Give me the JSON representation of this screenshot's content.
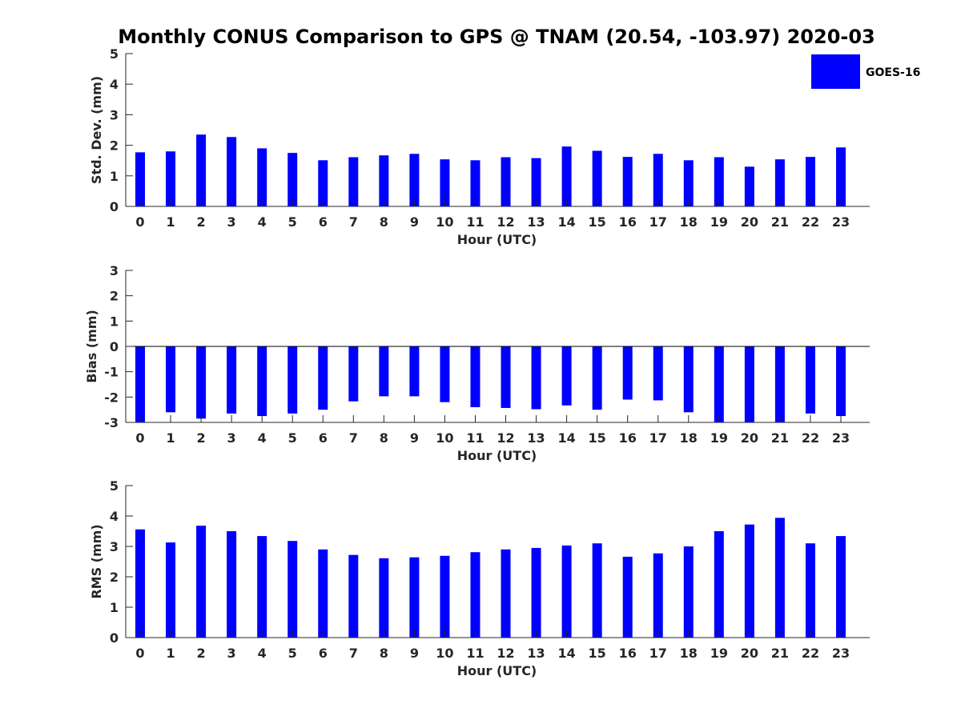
{
  "title": "Monthly CONUS Comparison to GPS @ TNAM (20.54, -103.97) 2020-03",
  "legend": {
    "label": "GOES-16",
    "color": "#0000ff",
    "placement": "top-right"
  },
  "colors": {
    "bar": "#0000ff",
    "axis": "#262626",
    "title": "#000000"
  },
  "chart_data": [
    {
      "type": "bar",
      "title": "",
      "xlabel": "Hour (UTC)",
      "ylabel": "Std. Dev. (mm)",
      "categories": [
        "0",
        "1",
        "2",
        "3",
        "4",
        "5",
        "6",
        "7",
        "8",
        "9",
        "10",
        "11",
        "12",
        "13",
        "14",
        "15",
        "16",
        "17",
        "18",
        "19",
        "20",
        "21",
        "22",
        "23"
      ],
      "series": [
        {
          "name": "GOES-16",
          "values": [
            1.77,
            1.8,
            2.35,
            2.27,
            1.9,
            1.75,
            1.51,
            1.61,
            1.67,
            1.72,
            1.54,
            1.51,
            1.61,
            1.58,
            1.96,
            1.82,
            1.62,
            1.72,
            1.51,
            1.61,
            1.3,
            1.54,
            1.62,
            1.93
          ]
        }
      ],
      "ylim": [
        0,
        5
      ],
      "yticks": [
        "0",
        "1",
        "2",
        "3",
        "4",
        "5"
      ],
      "grid": false
    },
    {
      "type": "bar",
      "title": "",
      "xlabel": "Hour (UTC)",
      "ylabel": "Bias (mm)",
      "categories": [
        "0",
        "1",
        "2",
        "3",
        "4",
        "5",
        "6",
        "7",
        "8",
        "9",
        "10",
        "11",
        "12",
        "13",
        "14",
        "15",
        "16",
        "17",
        "18",
        "19",
        "20",
        "21",
        "22",
        "23"
      ],
      "series": [
        {
          "name": "GOES-16",
          "values": [
            -3.0,
            -2.6,
            -2.85,
            -2.65,
            -2.75,
            -2.65,
            -2.5,
            -2.17,
            -1.97,
            -1.97,
            -2.2,
            -2.4,
            -2.43,
            -2.48,
            -2.33,
            -2.5,
            -2.1,
            -2.13,
            -2.6,
            -3.0,
            -3.0,
            -3.0,
            -2.65,
            -2.75
          ]
        }
      ],
      "ylim": [
        -3,
        3
      ],
      "yticks": [
        "-3",
        "-2",
        "-1",
        "0",
        "1",
        "2",
        "3"
      ],
      "zero_line": true,
      "grid": false
    },
    {
      "type": "bar",
      "title": "",
      "xlabel": "Hour (UTC)",
      "ylabel": "RMS (mm)",
      "categories": [
        "0",
        "1",
        "2",
        "3",
        "4",
        "5",
        "6",
        "7",
        "8",
        "9",
        "10",
        "11",
        "12",
        "13",
        "14",
        "15",
        "16",
        "17",
        "18",
        "19",
        "20",
        "21",
        "22",
        "23"
      ],
      "series": [
        {
          "name": "GOES-16",
          "values": [
            3.56,
            3.13,
            3.68,
            3.5,
            3.34,
            3.18,
            2.9,
            2.72,
            2.61,
            2.64,
            2.69,
            2.81,
            2.9,
            2.95,
            3.03,
            3.1,
            2.66,
            2.77,
            3.0,
            3.5,
            3.72,
            3.94,
            3.1,
            3.34
          ]
        }
      ],
      "ylim": [
        0,
        5
      ],
      "yticks": [
        "0",
        "1",
        "2",
        "3",
        "4",
        "5"
      ],
      "grid": false
    }
  ]
}
